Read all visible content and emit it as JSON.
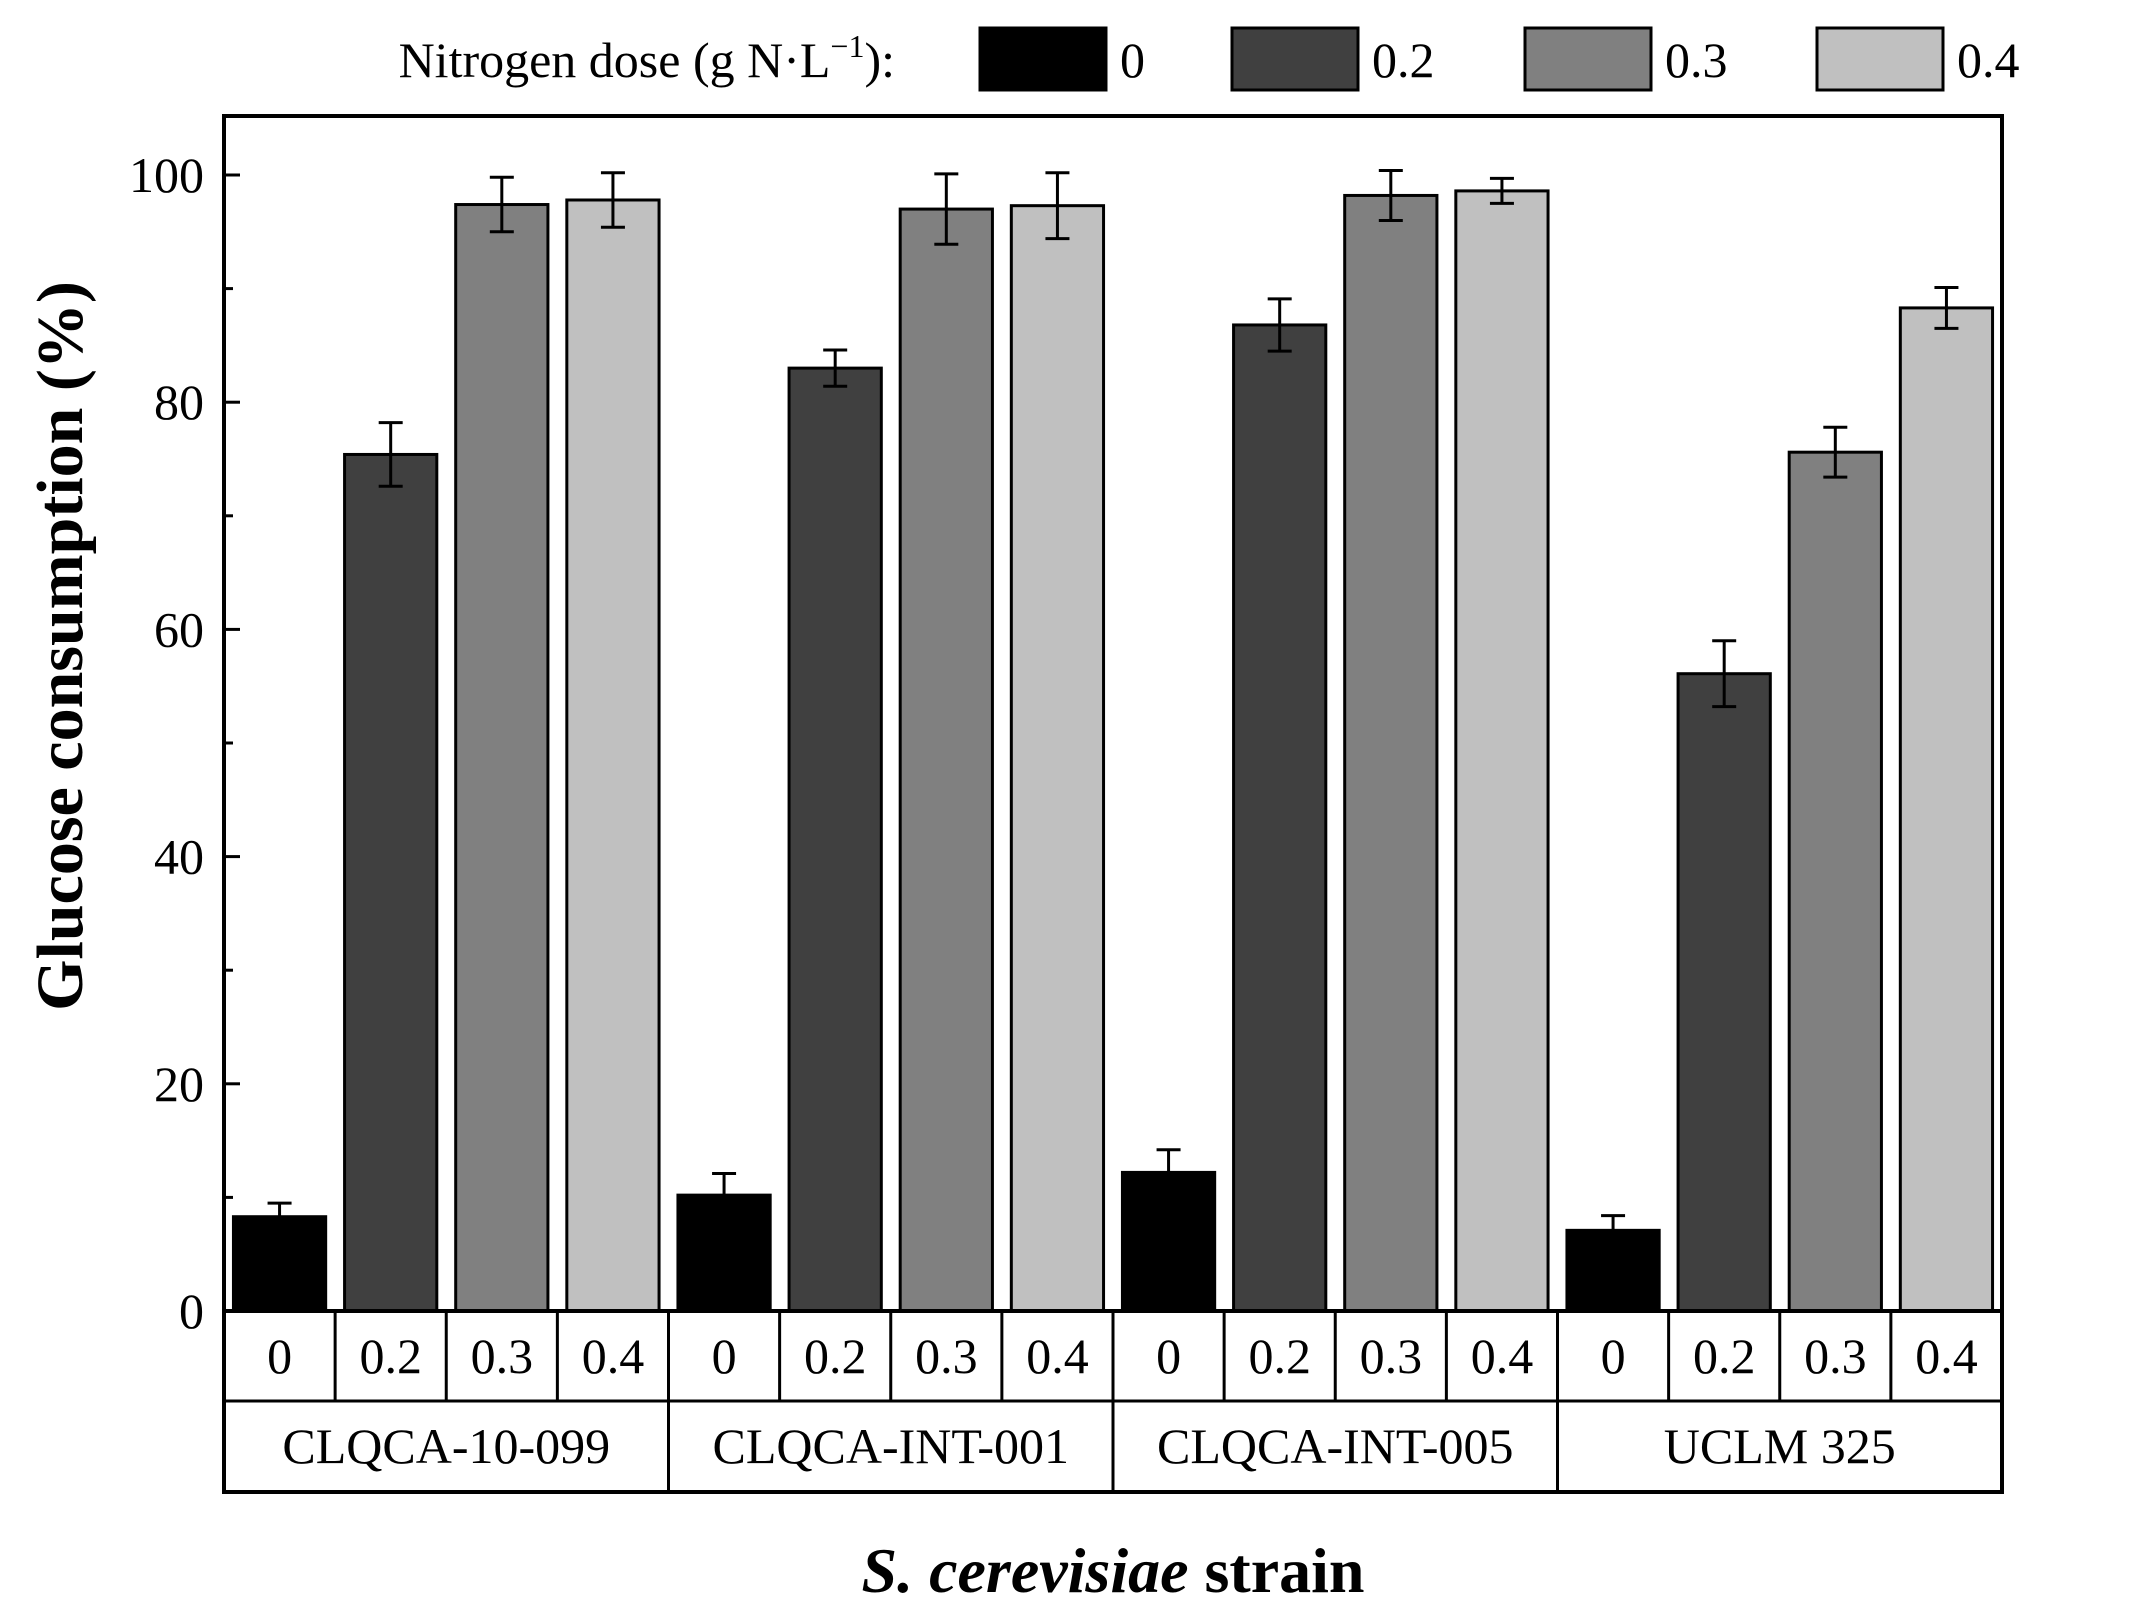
{
  "chart_data": {
    "type": "bar",
    "title": "",
    "xlabel": {
      "italic_part": "S. cerevisiae",
      "normal_part": " strain"
    },
    "ylabel": "Glucose consumption (%)",
    "ylim": [
      0,
      100
    ],
    "yticks": [
      0,
      20,
      40,
      60,
      80,
      100
    ],
    "y_minor_ticks": [
      10,
      30,
      50,
      70,
      90
    ],
    "grid": false,
    "legend": {
      "position": "top",
      "title_base": "Nitrogen dose (g N·L",
      "title_sup": "−1",
      "title_end": "):"
    },
    "groups": [
      "CLQCA-10-099",
      "CLQCA-INT-001",
      "CLQCA-INT-005",
      "UCLM 325"
    ],
    "categories": [
      "0",
      "0.2",
      "0.3",
      "0.4"
    ],
    "series": [
      {
        "name": "0",
        "color": "#000000",
        "values": [
          8.3,
          10.2,
          12.2,
          7.1
        ],
        "errors": [
          1.2,
          1.9,
          2.0,
          1.3
        ]
      },
      {
        "name": "0.2",
        "color": "#404040",
        "values": [
          75.4,
          83.0,
          86.8,
          56.1
        ],
        "errors": [
          2.8,
          1.6,
          2.3,
          2.9
        ]
      },
      {
        "name": "0.3",
        "color": "#808080",
        "values": [
          97.4,
          97.0,
          98.2,
          75.6
        ],
        "errors": [
          2.4,
          3.1,
          2.2,
          2.2
        ]
      },
      {
        "name": "0.4",
        "color": "#c0c0c0",
        "values": [
          97.8,
          97.3,
          98.6,
          88.3
        ],
        "errors": [
          2.4,
          2.9,
          1.1,
          1.8
        ]
      }
    ]
  }
}
